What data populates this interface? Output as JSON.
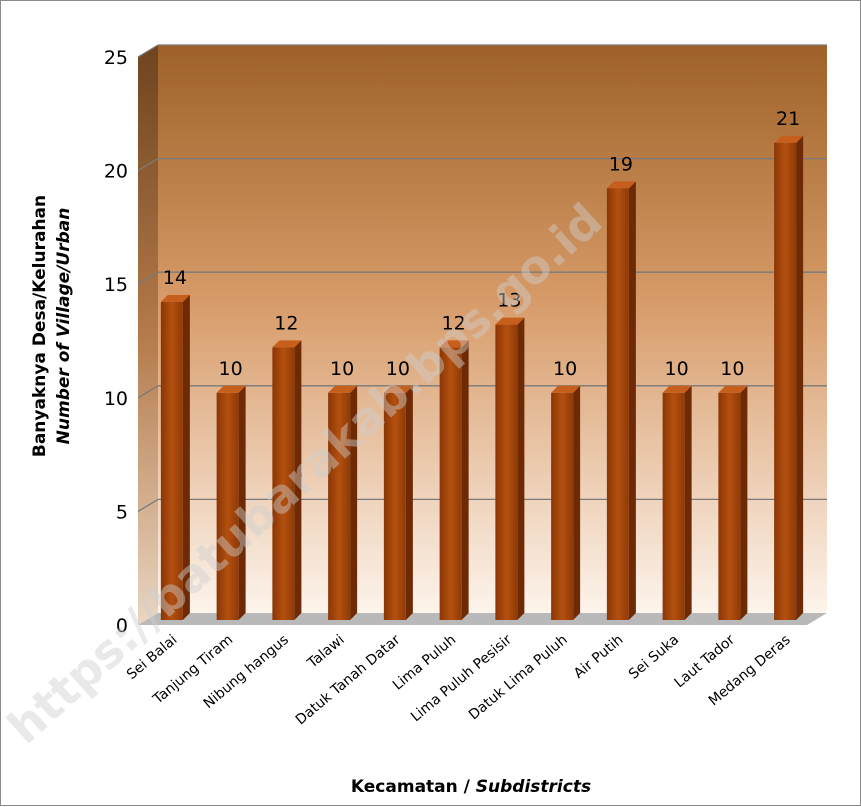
{
  "chart_data": {
    "type": "bar",
    "categories": [
      "Sei Balai",
      "Tanjung Tiram",
      "Nibung hangus",
      "Talawi",
      "Datuk Tanah Datar",
      "Lima Puluh",
      "Lima Puluh Pesisir",
      "Datuk Lima Puluh",
      "Air Putih",
      "Sei Suka",
      "Laut Tador",
      "Medang Deras"
    ],
    "values": [
      14,
      10,
      12,
      10,
      10,
      12,
      13,
      10,
      19,
      10,
      10,
      21
    ],
    "ylabel": "Banyaknya Desa/Kelurahan",
    "ylabel_english": "Number of Village/Urban",
    "xlabel": "Kecamatan / ",
    "xlabel_english": "Subdistricts",
    "ylim": [
      0,
      25
    ],
    "yticks": [
      0,
      5,
      10,
      15,
      20,
      25
    ],
    "grid": true,
    "data_labels": true,
    "bar_color": "#A0430A",
    "watermark": "https://batubarakab.bps.go.id"
  }
}
